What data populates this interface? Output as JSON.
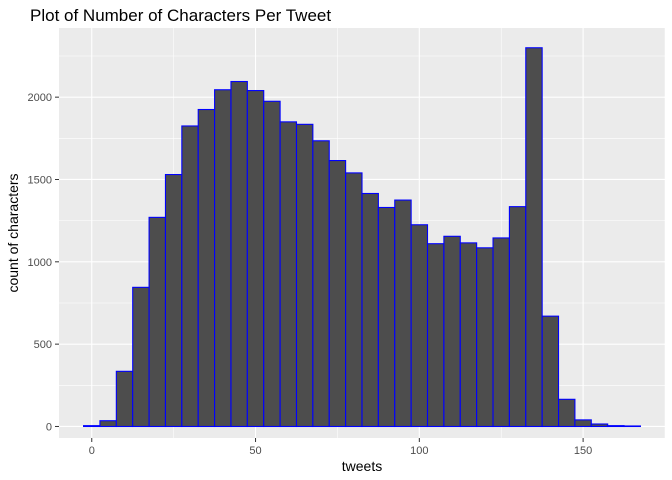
{
  "chart_data": {
    "type": "bar",
    "subtype": "histogram",
    "title": "Plot of Number of Characters Per Tweet",
    "xlabel": "tweets",
    "ylabel": "count of characters",
    "bin_width": 5,
    "bin_centers": [
      0,
      5,
      10,
      15,
      20,
      25,
      30,
      35,
      40,
      45,
      50,
      55,
      60,
      65,
      70,
      75,
      80,
      85,
      90,
      95,
      100,
      105,
      110,
      115,
      120,
      125,
      130,
      135,
      140,
      145,
      150,
      155,
      160,
      165
    ],
    "values": [
      5,
      35,
      335,
      845,
      1270,
      1530,
      1825,
      1925,
      2045,
      2095,
      2040,
      1975,
      1850,
      1835,
      1735,
      1615,
      1540,
      1415,
      1330,
      1375,
      1225,
      1110,
      1155,
      1115,
      1085,
      1145,
      1335,
      2300,
      670,
      165,
      40,
      15,
      5,
      3
    ],
    "xlim": [
      -10,
      175
    ],
    "ylim": [
      -70,
      2420
    ],
    "x_ticks": [
      0,
      50,
      100,
      150
    ],
    "x_tick_labels": [
      "0",
      "50",
      "100",
      "150"
    ],
    "y_ticks": [
      0,
      500,
      1000,
      1500,
      2000
    ],
    "y_tick_labels": [
      "0",
      "500",
      "1000",
      "1500",
      "2000"
    ],
    "grid": true,
    "bar_fill": "#4d4d4d",
    "bar_outline": "#0000ff",
    "panel_background": "#ebebeb",
    "gridline_color": "#ffffff"
  }
}
